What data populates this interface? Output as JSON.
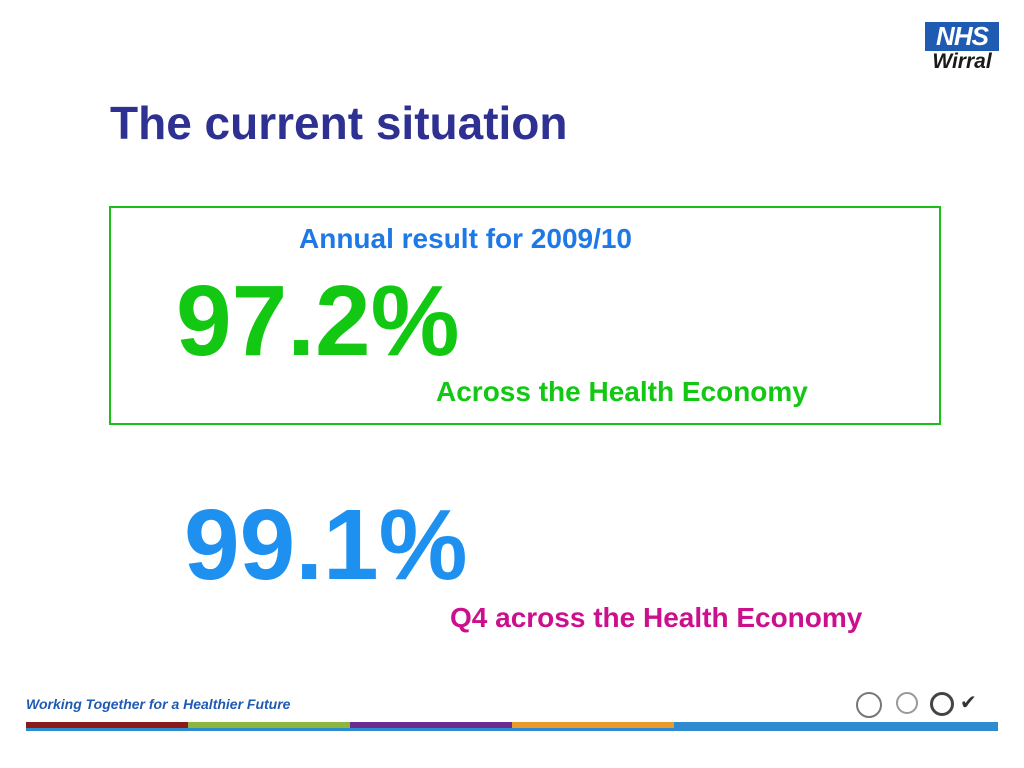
{
  "logo": {
    "brand": "NHS",
    "organisation": "Wirral"
  },
  "slide": {
    "title": "The current situation",
    "annual": {
      "label": "Annual result for 2009/10",
      "value": "97.2%",
      "caption": "Across the Health Economy"
    },
    "q4": {
      "value": "99.1%",
      "caption": "Q4 across the Health Economy"
    }
  },
  "footer": {
    "tagline": "Working Together for a Healthier Future",
    "stripe_colors": [
      "#8b1a1a",
      "#8db63c",
      "#6a2c91",
      "#e89a2c",
      "#2f8bd0",
      "#2f8bd0"
    ],
    "award_icons": [
      "award-seal-icon",
      "award-ring-icon",
      "crest-icon",
      "checkmark-badge-icon"
    ]
  }
}
